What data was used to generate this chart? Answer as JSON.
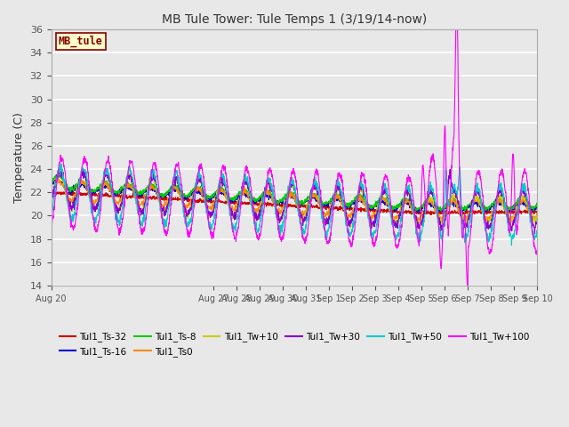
{
  "title": "MB Tule Tower: Tule Temps 1 (3/19/14-now)",
  "ylabel": "Temperature (C)",
  "ylim": [
    14,
    36
  ],
  "yticks": [
    14,
    16,
    18,
    20,
    22,
    24,
    26,
    28,
    30,
    32,
    34,
    36
  ],
  "background_color": "#e8e8e8",
  "plot_bg_color": "#e8e8e8",
  "grid_color": "#ffffff",
  "series": [
    {
      "label": "Tul1_Ts-32",
      "color": "#cc0000"
    },
    {
      "label": "Tul1_Ts-16",
      "color": "#0000cc"
    },
    {
      "label": "Tul1_Ts-8",
      "color": "#00cc00"
    },
    {
      "label": "Tul1_Ts0",
      "color": "#ff8800"
    },
    {
      "label": "Tul1_Tw+10",
      "color": "#cccc00"
    },
    {
      "label": "Tul1_Tw+30",
      "color": "#8800cc"
    },
    {
      "label": "Tul1_Tw+50",
      "color": "#00cccc"
    },
    {
      "label": "Tul1_Tw+100",
      "color": "#ff00ff"
    }
  ],
  "watermark": "MB_tule",
  "watermark_bg": "#ffffcc",
  "watermark_fg": "#880000",
  "n_days": 21,
  "pts_per_day": 96,
  "xtick_labels": [
    "Aug 20",
    "Aug 27",
    "Aug 28",
    "Aug 29",
    "Aug 30",
    "Aug 31",
    "Sep 1",
    "Sep 2",
    "Sep 3",
    "Sep 4",
    "Sep 5",
    "Sep 6",
    "Sep 7",
    "Sep 8",
    "Sep 9",
    "Sep 10"
  ],
  "xtick_positions": [
    0,
    7,
    8,
    9,
    10,
    11,
    12,
    13,
    14,
    15,
    16,
    17,
    18,
    19,
    20,
    21
  ]
}
